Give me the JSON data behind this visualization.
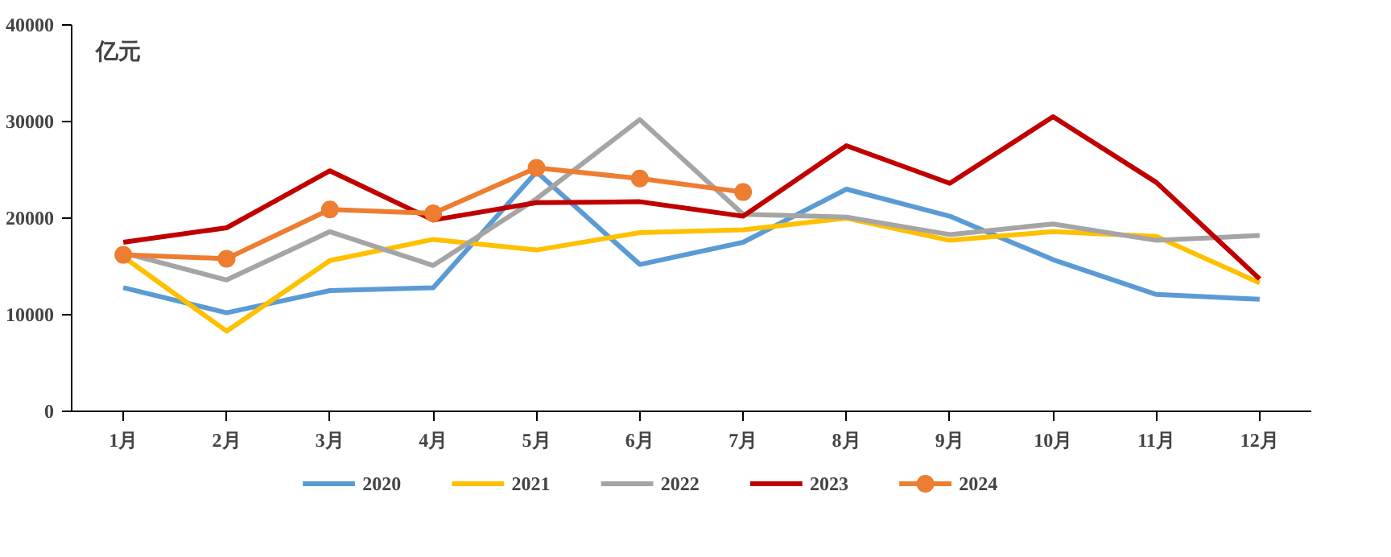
{
  "chart_data": {
    "type": "line",
    "ylabel": "亿元",
    "categories": [
      "1月",
      "2月",
      "3月",
      "4月",
      "5月",
      "6月",
      "7月",
      "8月",
      "9月",
      "10月",
      "11月",
      "12月"
    ],
    "ylim": [
      0,
      40000
    ],
    "yticks": [
      0,
      10000,
      20000,
      30000,
      40000
    ],
    "grid": false,
    "legend": "bottom",
    "series": [
      {
        "name": "2020",
        "color": "#5b9bd5",
        "values": [
          12800,
          10200,
          12500,
          12800,
          24800,
          15200,
          17500,
          23000,
          20200,
          15700,
          12100,
          11600
        ]
      },
      {
        "name": "2021",
        "color": "#ffc000",
        "values": [
          16000,
          8300,
          15600,
          17800,
          16700,
          18500,
          18800,
          20000,
          17700,
          18600,
          18100,
          13300
        ]
      },
      {
        "name": "2022",
        "color": "#a5a5a5",
        "values": [
          16400,
          13600,
          18600,
          15100,
          22000,
          30200,
          20400,
          20100,
          18300,
          19400,
          17700,
          18200
        ]
      },
      {
        "name": "2023",
        "color": "#c00000",
        "values": [
          17500,
          19000,
          24900,
          19800,
          21600,
          21700,
          20200,
          27500,
          23600,
          30500,
          23700,
          13700
        ]
      },
      {
        "name": "2024",
        "color": "#ed7d31",
        "marker": "circle",
        "values": [
          16200,
          15800,
          20900,
          20500,
          25200,
          24100,
          22700,
          null,
          null,
          null,
          null,
          null
        ]
      }
    ]
  }
}
